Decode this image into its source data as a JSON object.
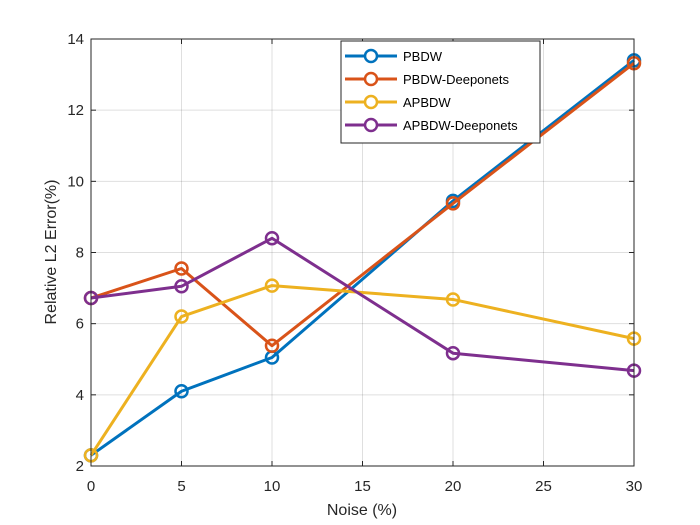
{
  "chart_data": {
    "type": "line",
    "title": "",
    "xlabel": "Noise (%)",
    "ylabel": "Relative L2 Error(%)",
    "x": [
      0,
      5,
      10,
      20,
      30
    ],
    "xlim": [
      0,
      30
    ],
    "ylim": [
      2,
      14
    ],
    "xticks": [
      "0",
      "5",
      "10",
      "15",
      "20",
      "25",
      "30"
    ],
    "yticks": [
      "2",
      "4",
      "6",
      "8",
      "10",
      "12",
      "14"
    ],
    "grid": true,
    "legend_position": "top-right",
    "series": [
      {
        "name": "PBDW",
        "color": "#0072BD",
        "values": [
          2.3,
          4.1,
          5.05,
          9.45,
          13.4
        ]
      },
      {
        "name": "PBDW-Deeponets",
        "color": "#D95319",
        "values": [
          6.72,
          7.55,
          5.38,
          9.38,
          13.32
        ]
      },
      {
        "name": "APBDW",
        "color": "#EDB120",
        "values": [
          2.3,
          6.2,
          7.07,
          6.68,
          5.58
        ]
      },
      {
        "name": "APBDW-Deeponets",
        "color": "#7E2F8E",
        "values": [
          6.72,
          7.05,
          8.4,
          5.17,
          4.68
        ]
      }
    ]
  }
}
